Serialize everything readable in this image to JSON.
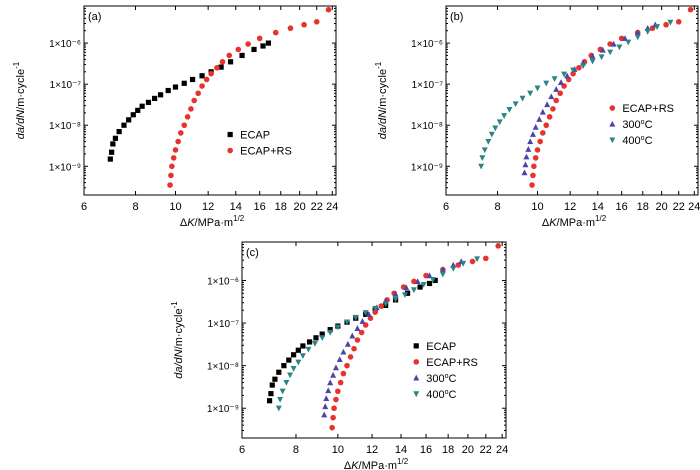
{
  "chart_data": [
    {
      "type": "scatter",
      "panel_label": "(a)",
      "xlabel": "ΔK/MPa·m^1/2",
      "ylabel": "da/dN/m·cycle^-1",
      "x_scale": "log",
      "y_scale": "log",
      "xlim": [
        6,
        24.5
      ],
      "ylim": [
        2e-10,
        8e-06
      ],
      "x_ticks": [
        6,
        8,
        10,
        12,
        14,
        16,
        18,
        20,
        22,
        24
      ],
      "y_ticks": [
        1e-09,
        1e-08,
        1e-07,
        1e-06
      ],
      "y_tick_labels": [
        "1×10⁻⁹",
        "1×10⁻⁸",
        "1×10⁻⁷",
        "1×10⁻⁶"
      ],
      "legend_position": "bottom-right",
      "series": [
        {
          "name": "ECAP",
          "marker": "square",
          "color": "#000000",
          "points": [
            [
              6.95,
              1.5e-09
            ],
            [
              7.0,
              2.2e-09
            ],
            [
              7.05,
              3.5e-09
            ],
            [
              7.15,
              4.8e-09
            ],
            [
              7.3,
              7e-09
            ],
            [
              7.5,
              1e-08
            ],
            [
              7.7,
              1.35e-08
            ],
            [
              7.9,
              1.8e-08
            ],
            [
              8.1,
              2.3e-08
            ],
            [
              8.3,
              2.9e-08
            ],
            [
              8.6,
              3.6e-08
            ],
            [
              8.9,
              4.5e-08
            ],
            [
              9.2,
              5.5e-08
            ],
            [
              9.6,
              7e-08
            ],
            [
              10.0,
              8.5e-08
            ],
            [
              10.5,
              1.05e-07
            ],
            [
              11.0,
              1.3e-07
            ],
            [
              11.6,
              1.6e-07
            ],
            [
              12.2,
              2e-07
            ],
            [
              12.9,
              2.6e-07
            ],
            [
              13.6,
              3.5e-07
            ],
            [
              14.5,
              5e-07
            ],
            [
              15.5,
              7e-07
            ],
            [
              16.3,
              8.5e-07
            ],
            [
              16.8,
              1e-06
            ]
          ]
        },
        {
          "name": "ECAP+RS",
          "marker": "circle",
          "color": "#e8322d",
          "points": [
            [
              9.7,
              3.5e-10
            ],
            [
              9.75,
              6e-10
            ],
            [
              9.8,
              1e-09
            ],
            [
              9.9,
              1.6e-09
            ],
            [
              10.0,
              2.5e-09
            ],
            [
              10.15,
              4e-09
            ],
            [
              10.3,
              6.5e-09
            ],
            [
              10.5,
              1e-08
            ],
            [
              10.7,
              1.6e-08
            ],
            [
              10.9,
              2.5e-08
            ],
            [
              11.1,
              4e-08
            ],
            [
              11.35,
              6e-08
            ],
            [
              11.6,
              9e-08
            ],
            [
              11.9,
              1.3e-07
            ],
            [
              12.2,
              1.8e-07
            ],
            [
              12.6,
              2.5e-07
            ],
            [
              13.0,
              3.5e-07
            ],
            [
              13.5,
              5e-07
            ],
            [
              14.2,
              7e-07
            ],
            [
              15.0,
              9.5e-07
            ],
            [
              16.0,
              1.3e-06
            ],
            [
              17.5,
              1.8e-06
            ],
            [
              19.0,
              2.3e-06
            ],
            [
              20.5,
              2.8e-06
            ],
            [
              22.0,
              3.3e-06
            ],
            [
              23.5,
              6.5e-06
            ]
          ]
        }
      ]
    },
    {
      "type": "scatter",
      "panel_label": "(b)",
      "xlabel": "ΔK/MPa·m^1/2",
      "ylabel": "da/dN/m·cycle^-1",
      "x_scale": "log",
      "y_scale": "log",
      "xlim": [
        6,
        24.5
      ],
      "ylim": [
        2e-10,
        8e-06
      ],
      "x_ticks": [
        6,
        8,
        10,
        12,
        14,
        16,
        18,
        20,
        22,
        24
      ],
      "y_ticks": [
        1e-09,
        1e-08,
        1e-07,
        1e-06
      ],
      "y_tick_labels": [
        "1×10⁻⁹",
        "1×10⁻⁸",
        "1×10⁻⁷",
        "1×10⁻⁶"
      ],
      "legend_position": "bottom-right",
      "series": [
        {
          "name": "ECAP+RS",
          "marker": "circle",
          "color": "#e8322d",
          "points": [
            [
              9.7,
              3.5e-10
            ],
            [
              9.75,
              6e-10
            ],
            [
              9.8,
              1e-09
            ],
            [
              9.9,
              1.6e-09
            ],
            [
              10.0,
              2.5e-09
            ],
            [
              10.15,
              4e-09
            ],
            [
              10.3,
              6.5e-09
            ],
            [
              10.5,
              1e-08
            ],
            [
              10.7,
              1.6e-08
            ],
            [
              10.9,
              2.5e-08
            ],
            [
              11.1,
              4e-08
            ],
            [
              11.35,
              6e-08
            ],
            [
              11.6,
              9e-08
            ],
            [
              11.9,
              1.3e-07
            ],
            [
              12.2,
              1.8e-07
            ],
            [
              12.6,
              2.5e-07
            ],
            [
              13.0,
              3.5e-07
            ],
            [
              13.5,
              5e-07
            ],
            [
              14.2,
              7e-07
            ],
            [
              15.0,
              9.5e-07
            ],
            [
              16.0,
              1.3e-06
            ],
            [
              17.5,
              1.8e-06
            ],
            [
              19.0,
              2.3e-06
            ],
            [
              20.5,
              2.8e-06
            ],
            [
              22.0,
              3.3e-06
            ],
            [
              23.5,
              6.5e-06
            ]
          ]
        },
        {
          "name": "300°C",
          "marker": "triangle-up",
          "color": "#4a45a6",
          "points": [
            [
              9.3,
              7e-10
            ],
            [
              9.35,
              1.1e-09
            ],
            [
              9.4,
              1.7e-09
            ],
            [
              9.5,
              2.6e-09
            ],
            [
              9.6,
              4e-09
            ],
            [
              9.75,
              6e-09
            ],
            [
              9.9,
              9e-09
            ],
            [
              10.1,
              1.4e-08
            ],
            [
              10.3,
              2.1e-08
            ],
            [
              10.55,
              3.2e-08
            ],
            [
              10.8,
              5e-08
            ],
            [
              11.1,
              7.5e-08
            ],
            [
              11.4,
              1.1e-07
            ],
            [
              11.8,
              1.6e-07
            ],
            [
              12.3,
              2.3e-07
            ],
            [
              12.9,
              3.3e-07
            ],
            [
              13.6,
              4.8e-07
            ],
            [
              14.4,
              6.8e-07
            ],
            [
              15.3,
              9.5e-07
            ],
            [
              16.3,
              1.3e-06
            ],
            [
              17.5,
              1.8e-06
            ],
            [
              18.5,
              2.3e-06
            ],
            [
              19.3,
              2.8e-06
            ]
          ]
        },
        {
          "name": "400°C",
          "marker": "triangle-down",
          "color": "#2b8585",
          "points": [
            [
              7.3,
              1e-09
            ],
            [
              7.35,
              1.6e-09
            ],
            [
              7.45,
              2.5e-09
            ],
            [
              7.6,
              4e-09
            ],
            [
              7.75,
              6e-09
            ],
            [
              7.9,
              8.5e-09
            ],
            [
              8.1,
              1.2e-08
            ],
            [
              8.3,
              1.7e-08
            ],
            [
              8.55,
              2.4e-08
            ],
            [
              8.85,
              3.3e-08
            ],
            [
              9.2,
              4.5e-08
            ],
            [
              9.6,
              6e-08
            ],
            [
              10.0,
              8e-08
            ],
            [
              10.5,
              1.05e-07
            ],
            [
              11.0,
              1.35e-07
            ],
            [
              11.6,
              1.75e-07
            ],
            [
              12.2,
              2.2e-07
            ],
            [
              12.9,
              2.8e-07
            ],
            [
              13.6,
              3.6e-07
            ],
            [
              14.3,
              4.6e-07
            ],
            [
              15.0,
              6e-07
            ],
            [
              15.8,
              8e-07
            ],
            [
              16.6,
              1.05e-06
            ],
            [
              17.5,
              1.4e-06
            ],
            [
              18.5,
              1.9e-06
            ],
            [
              19.5,
              2.5e-06
            ],
            [
              21.0,
              3.2e-06
            ]
          ]
        }
      ]
    },
    {
      "type": "scatter",
      "panel_label": "(c)",
      "xlabel": "ΔK/MPa·m^1/2",
      "ylabel": "da/dN/m·cycle^-1",
      "x_scale": "log",
      "y_scale": "log",
      "xlim": [
        6,
        24.5
      ],
      "ylim": [
        2e-10,
        8e-06
      ],
      "x_ticks": [
        6,
        8,
        10,
        12,
        14,
        16,
        18,
        20,
        22,
        24
      ],
      "y_ticks": [
        1e-09,
        1e-08,
        1e-07,
        1e-06
      ],
      "y_tick_labels": [
        "1×10⁻⁹",
        "1×10⁻⁸",
        "1×10⁻⁷",
        "1×10⁻⁶"
      ],
      "legend_position": "bottom-right",
      "series": [
        {
          "name": "ECAP",
          "marker": "square",
          "color": "#000000",
          "points": [
            [
              6.95,
              1.5e-09
            ],
            [
              7.0,
              2.2e-09
            ],
            [
              7.05,
              3.5e-09
            ],
            [
              7.15,
              4.8e-09
            ],
            [
              7.3,
              7e-09
            ],
            [
              7.5,
              1e-08
            ],
            [
              7.7,
              1.35e-08
            ],
            [
              7.9,
              1.8e-08
            ],
            [
              8.1,
              2.3e-08
            ],
            [
              8.3,
              2.9e-08
            ],
            [
              8.6,
              3.6e-08
            ],
            [
              8.9,
              4.5e-08
            ],
            [
              9.2,
              5.5e-08
            ],
            [
              9.6,
              7e-08
            ],
            [
              10.0,
              8.5e-08
            ],
            [
              10.5,
              1.05e-07
            ],
            [
              11.0,
              1.3e-07
            ],
            [
              11.6,
              1.6e-07
            ],
            [
              12.2,
              2e-07
            ],
            [
              12.9,
              2.6e-07
            ],
            [
              13.6,
              3.5e-07
            ],
            [
              14.5,
              5e-07
            ],
            [
              15.5,
              7e-07
            ],
            [
              16.3,
              8.5e-07
            ],
            [
              16.8,
              1e-06
            ]
          ]
        },
        {
          "name": "ECAP+RS",
          "marker": "circle",
          "color": "#e8322d",
          "points": [
            [
              9.7,
              3.5e-10
            ],
            [
              9.75,
              6e-10
            ],
            [
              9.8,
              1e-09
            ],
            [
              9.9,
              1.6e-09
            ],
            [
              10.0,
              2.5e-09
            ],
            [
              10.15,
              4e-09
            ],
            [
              10.3,
              6.5e-09
            ],
            [
              10.5,
              1e-08
            ],
            [
              10.7,
              1.6e-08
            ],
            [
              10.9,
              2.5e-08
            ],
            [
              11.1,
              4e-08
            ],
            [
              11.35,
              6e-08
            ],
            [
              11.6,
              9e-08
            ],
            [
              11.9,
              1.3e-07
            ],
            [
              12.2,
              1.8e-07
            ],
            [
              12.6,
              2.5e-07
            ],
            [
              13.0,
              3.5e-07
            ],
            [
              13.5,
              5e-07
            ],
            [
              14.2,
              7e-07
            ],
            [
              15.0,
              9.5e-07
            ],
            [
              16.0,
              1.3e-06
            ],
            [
              17.5,
              1.8e-06
            ],
            [
              19.0,
              2.3e-06
            ],
            [
              20.5,
              2.8e-06
            ],
            [
              22.0,
              3.3e-06
            ],
            [
              23.5,
              6.5e-06
            ]
          ]
        },
        {
          "name": "300°C",
          "marker": "triangle-up",
          "color": "#4a45a6",
          "points": [
            [
              9.3,
              7e-10
            ],
            [
              9.35,
              1.1e-09
            ],
            [
              9.4,
              1.7e-09
            ],
            [
              9.5,
              2.6e-09
            ],
            [
              9.6,
              4e-09
            ],
            [
              9.75,
              6e-09
            ],
            [
              9.9,
              9e-09
            ],
            [
              10.1,
              1.4e-08
            ],
            [
              10.3,
              2.1e-08
            ],
            [
              10.55,
              3.2e-08
            ],
            [
              10.8,
              5e-08
            ],
            [
              11.1,
              7.5e-08
            ],
            [
              11.4,
              1.1e-07
            ],
            [
              11.8,
              1.6e-07
            ],
            [
              12.3,
              2.3e-07
            ],
            [
              12.9,
              3.3e-07
            ],
            [
              13.6,
              4.8e-07
            ],
            [
              14.4,
              6.8e-07
            ],
            [
              15.3,
              9.5e-07
            ],
            [
              16.3,
              1.3e-06
            ],
            [
              17.5,
              1.8e-06
            ],
            [
              18.5,
              2.3e-06
            ],
            [
              19.3,
              2.8e-06
            ]
          ]
        },
        {
          "name": "400°C",
          "marker": "triangle-down",
          "color": "#2b8585",
          "points": [
            [
              7.3,
              1e-09
            ],
            [
              7.35,
              1.6e-09
            ],
            [
              7.45,
              2.5e-09
            ],
            [
              7.6,
              4e-09
            ],
            [
              7.75,
              6e-09
            ],
            [
              7.9,
              8.5e-09
            ],
            [
              8.1,
              1.2e-08
            ],
            [
              8.3,
              1.7e-08
            ],
            [
              8.55,
              2.4e-08
            ],
            [
              8.85,
              3.3e-08
            ],
            [
              9.2,
              4.5e-08
            ],
            [
              9.6,
              6e-08
            ],
            [
              10.0,
              8e-08
            ],
            [
              10.5,
              1.05e-07
            ],
            [
              11.0,
              1.35e-07
            ],
            [
              11.6,
              1.75e-07
            ],
            [
              12.2,
              2.2e-07
            ],
            [
              12.9,
              2.8e-07
            ],
            [
              13.6,
              3.6e-07
            ],
            [
              14.3,
              4.6e-07
            ],
            [
              15.0,
              6e-07
            ],
            [
              15.8,
              8e-07
            ],
            [
              16.6,
              1.05e-06
            ],
            [
              17.5,
              1.4e-06
            ],
            [
              18.5,
              1.9e-06
            ],
            [
              19.5,
              2.5e-06
            ],
            [
              21.0,
              3.2e-06
            ]
          ]
        }
      ]
    }
  ]
}
